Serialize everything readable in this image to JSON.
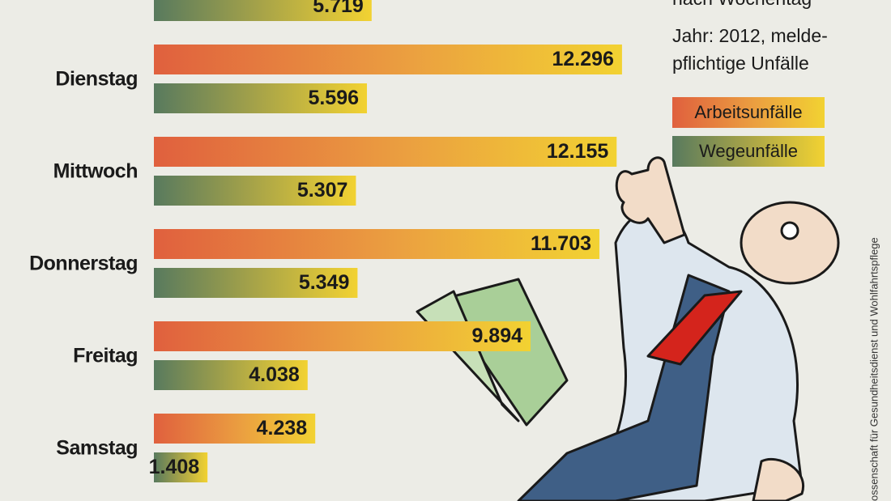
{
  "chart_data": {
    "type": "bar",
    "orientation": "horizontal",
    "subtitle": "nach Wochentag",
    "note": [
      "Jahr: 2012, melde-",
      "pflichtige Unfälle"
    ],
    "categories": [
      null,
      "Dienstag",
      "Mittwoch",
      "Donnerstag",
      "Freitag",
      "Samstag"
    ],
    "series": [
      {
        "name": "Arbeitsunfälle",
        "color": "#e0603e",
        "values": [
          null,
          12296,
          12155,
          11703,
          9894,
          4238
        ],
        "value_labels": [
          null,
          "12.296",
          "12.155",
          "11.703",
          "9.894",
          "4.238"
        ]
      },
      {
        "name": "Wegeunfälle",
        "color": "#587a5e",
        "values": [
          5719,
          5596,
          5307,
          5349,
          4038,
          1408
        ],
        "value_labels": [
          "5.719",
          "5.596",
          "5.307",
          "5.349",
          "4.038",
          "1.408"
        ]
      }
    ],
    "source": "ossenschaft für Gesundheitsdienst und Wohlfahrtspflege"
  }
}
